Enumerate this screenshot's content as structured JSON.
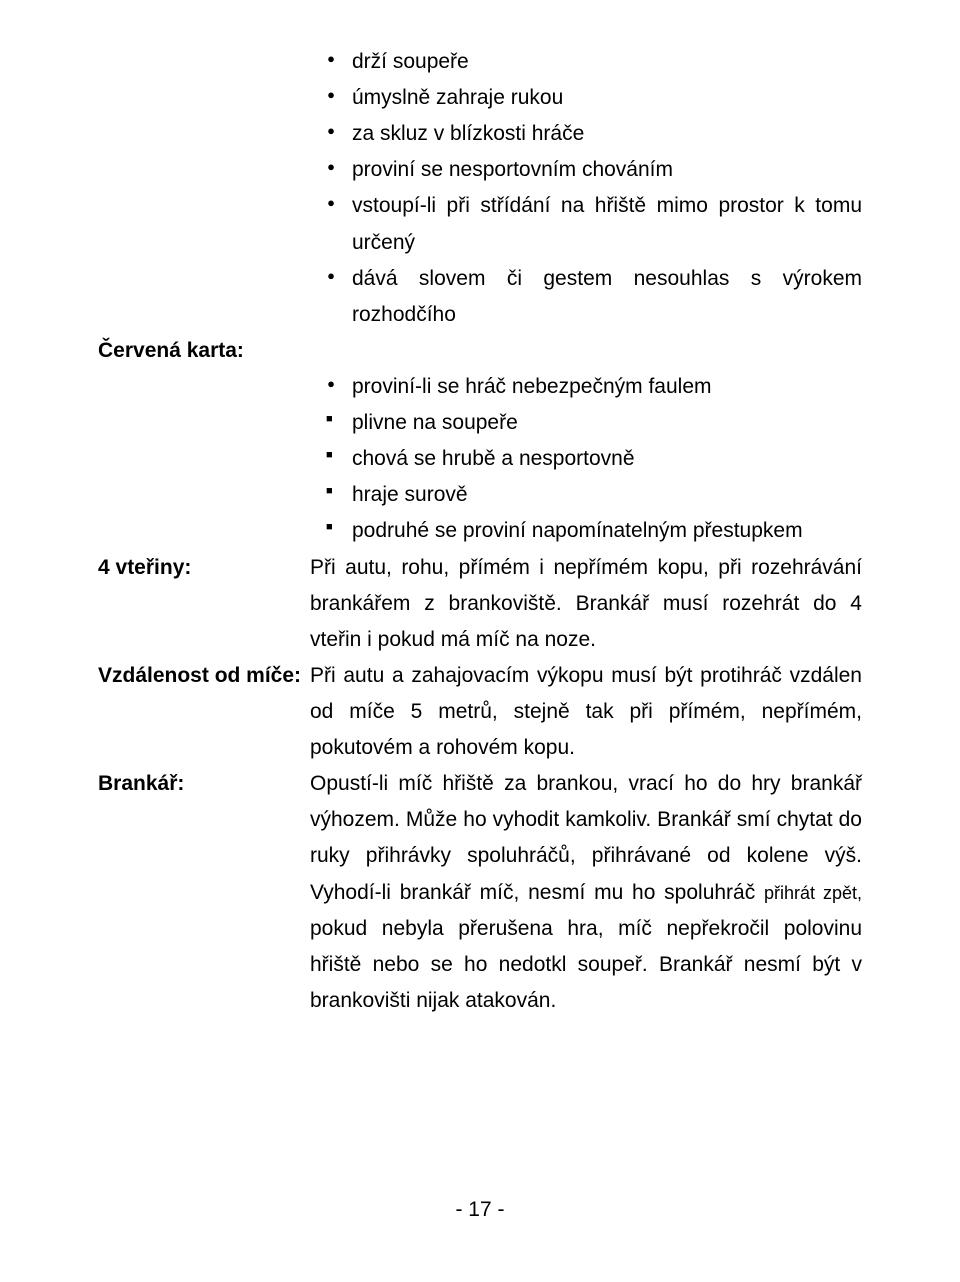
{
  "bullets_top": [
    "drží soupeře",
    "úmyslně zahraje rukou",
    "za skluz v blízkosti hráče",
    "proviní se nesportovním chováním",
    "vstoupí-li při střídání na hřiště mimo prostor k tomu určený",
    "dává slovem či gestem nesouhlas s výrokem rozhodčího"
  ],
  "red_card": {
    "label": "Červená karta:",
    "items": [
      "proviní-li se hráč nebezpečným faulem",
      "plivne na soupeře",
      "chová se hrubě a nesportovně",
      "hraje surově",
      "podruhé se proviní napomínatelným přestupkem"
    ]
  },
  "four_sec": {
    "label": "4 vteřiny:",
    "text": "Při autu, rohu, přímém i nepřímém kopu, při rozehrávání brankářem z brankoviště. Brankář musí rozehrát do 4 vteřin i pokud má míč na noze."
  },
  "distance": {
    "label": "Vzdálenost od míče:",
    "text": "Při autu a zahajovacím výkopu musí být protihráč vzdálen od míče 5 metrů, stejně tak při přímém, nepřímém, pokutovém a rohovém kopu."
  },
  "goalkeeper": {
    "label": "Brankář:",
    "text_a": "Opustí-li míč hřiště za brankou, vrací ho do hry brankář výhozem. Může ho vyhodit kamkoliv. Brankář smí chytat do ruky přihrávky spoluhráčů, přihrávané od kolene výš. Vyhodí-li brankář míč, nesmí mu ho spoluhráč ",
    "text_small": "přihrát zpět, ",
    "text_b": "pokud nebyla přerušena hra, míč nepřekročil polovinu hřiště nebo se ho nedotkl soupeř. Brankář nesmí být v brankovišti nijak atakován."
  },
  "page_number": "- 17 -"
}
